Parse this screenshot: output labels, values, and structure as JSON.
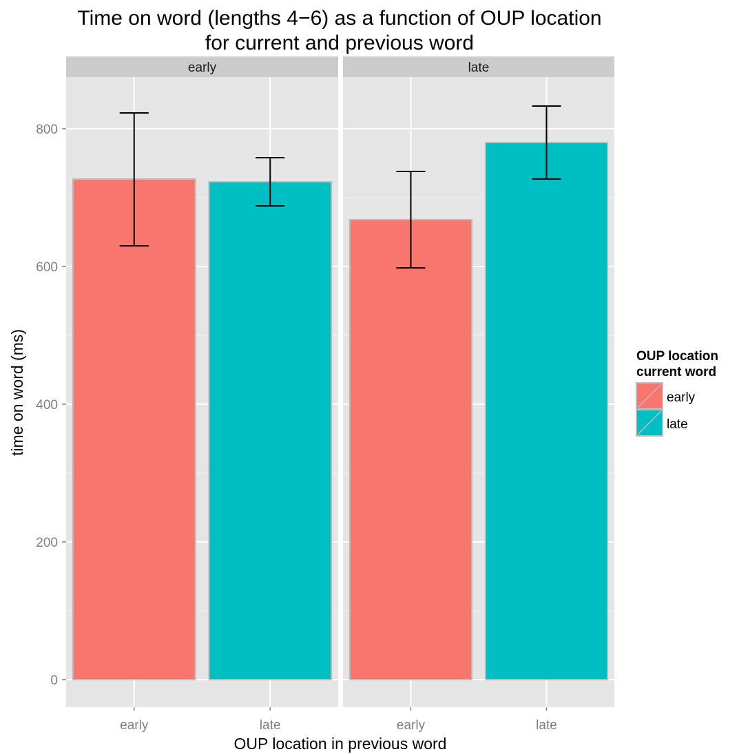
{
  "chart_data": {
    "type": "bar",
    "title": "Time on word (lengths 4−6) as a function of OUP location\nfor current and previous word",
    "title_lines": [
      "Time on word (lengths 4−6) as a function of OUP location",
      "for current and previous word"
    ],
    "xlabel": "OUP location in previous word",
    "ylabel": "time on word (ms)",
    "ylim": [
      -40,
      875
    ],
    "yticks": [
      0,
      200,
      400,
      600,
      800
    ],
    "grid": true,
    "panels": [
      {
        "label": "early",
        "categories": [
          "early",
          "late"
        ],
        "values": [
          727,
          723
        ],
        "error_low": [
          630,
          688
        ],
        "error_high": [
          823,
          758
        ]
      },
      {
        "label": "late",
        "categories": [
          "early",
          "late"
        ],
        "values": [
          668,
          780
        ],
        "error_low": [
          598,
          727
        ],
        "error_high": [
          738,
          833
        ]
      }
    ],
    "fill_colors": [
      "#F8766D",
      "#00BFC4"
    ],
    "legend": {
      "title_lines": [
        "OUP location",
        "current word"
      ],
      "entries": [
        "early",
        "late"
      ],
      "position": "right"
    }
  }
}
